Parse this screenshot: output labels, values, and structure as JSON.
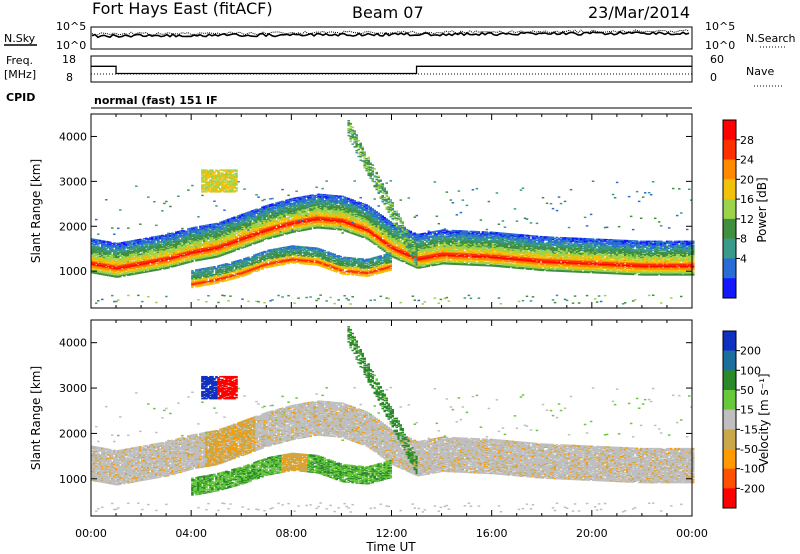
{
  "header": {
    "station": "Fort Hays East (fitACF)",
    "beam": "Beam 07",
    "date": "23/Mar/2014"
  },
  "top_panels": {
    "nsky_label": "N.Sky",
    "nsearch_label": "N.Search",
    "noise_left_ticks": [
      "10^5",
      "10^0"
    ],
    "noise_right_ticks": [
      "10^5",
      "10^0"
    ],
    "freq_label": "Freq.",
    "freq_unit": "[MHz]",
    "freq_ticks": [
      "18",
      "8"
    ],
    "nave_label": "Nave",
    "nave_ticks": [
      "60",
      "0"
    ],
    "cpid_label": "CPID",
    "cpid_value": "normal (fast) 151 IF"
  },
  "colors": {
    "power_scale": [
      "#1418ff",
      "#2a6cd6",
      "#3a9a8a",
      "#3f8f3f",
      "#9bd34a",
      "#f2c20a",
      "#ff8a00",
      "#ff3000",
      "#ff0000"
    ],
    "velocity_scale": [
      "#1030c0",
      "#1c6f9c",
      "#2a8a2a",
      "#66c83a",
      "#bfbfbf",
      "#c8a84a",
      "#ff9a00",
      "#ff5000",
      "#ff0000"
    ]
  },
  "chart_data": [
    {
      "type": "heatmap",
      "quantity": "power",
      "x_ticks": [
        "00:00",
        "04:00",
        "08:00",
        "12:00",
        "16:00",
        "20:00",
        "00:00"
      ],
      "xlabel": "Time UT",
      "ylabel": "Slant Range [km]",
      "y_ticks": [
        1000,
        2000,
        3000,
        4000
      ],
      "ylim": [
        180,
        4500
      ],
      "xlim_hours": [
        0,
        24
      ],
      "colorbar_label": "Power [dB]",
      "colorbar_ticks": [
        4,
        8,
        12,
        16,
        20,
        24,
        28
      ],
      "colorbar_range": [
        0,
        30
      ],
      "features": [
        {
          "name": "main_band",
          "hours": [
            0,
            1,
            2,
            3,
            4,
            5,
            6,
            7,
            8,
            9,
            10,
            11,
            12,
            13,
            14,
            16,
            18,
            20,
            22,
            24
          ],
          "range_km": [
            1150,
            1050,
            1150,
            1250,
            1400,
            1500,
            1700,
            1900,
            2050,
            2150,
            2100,
            1900,
            1500,
            1250,
            1350,
            1300,
            1200,
            1150,
            1100,
            1100
          ]
        },
        {
          "name": "lower_arc",
          "hours": [
            4,
            5,
            6,
            7,
            8,
            9,
            10,
            11,
            12
          ],
          "range_km": [
            700,
            800,
            950,
            1150,
            1250,
            1200,
            1000,
            950,
            1100
          ]
        }
      ]
    },
    {
      "type": "heatmap",
      "quantity": "velocity",
      "x_ticks": [
        "00:00",
        "04:00",
        "08:00",
        "12:00",
        "16:00",
        "20:00",
        "00:00"
      ],
      "xlabel": "Time UT",
      "ylabel": "Slant Range [km]",
      "y_ticks": [
        1000,
        2000,
        3000,
        4000
      ],
      "ylim": [
        180,
        4500
      ],
      "xlim_hours": [
        0,
        24
      ],
      "colorbar_label": "Velocity [m s⁻¹]",
      "colorbar_ticks": [
        200,
        100,
        50,
        15,
        -15,
        -50,
        -100,
        -200
      ],
      "colorbar_range": [
        -250,
        250
      ]
    }
  ]
}
